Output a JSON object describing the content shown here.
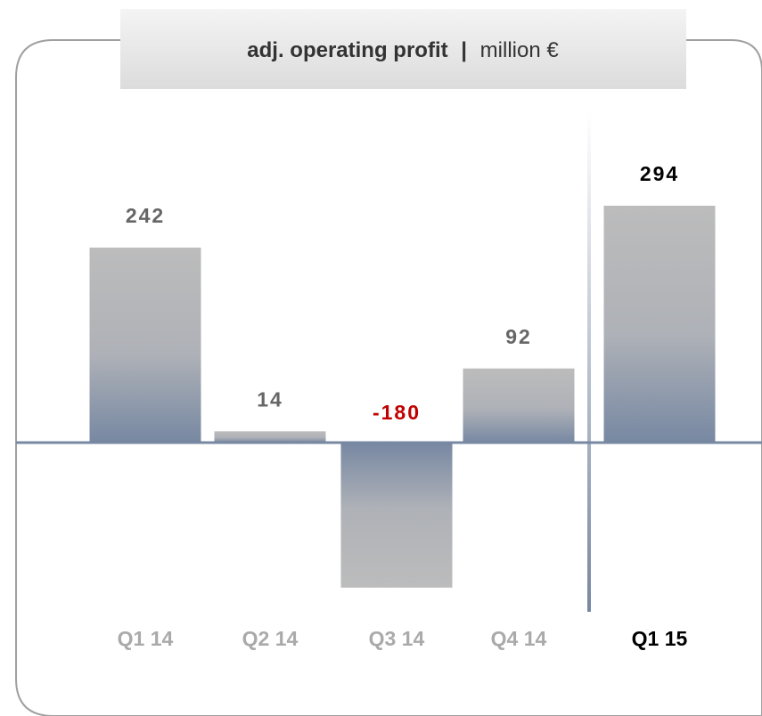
{
  "chart_data": {
    "type": "bar",
    "title": "adj. operating profit",
    "separator": "|",
    "unit": "million €",
    "categories": [
      "Q1 14",
      "Q2 14",
      "Q3 14",
      "Q4 14",
      "Q1 15"
    ],
    "values": [
      242,
      14,
      -180,
      92,
      294
    ],
    "color": "#b9b9b9",
    "base_color": "#7788a2",
    "negative_label_color": "#c00000",
    "highlight_color": "#000000"
  }
}
